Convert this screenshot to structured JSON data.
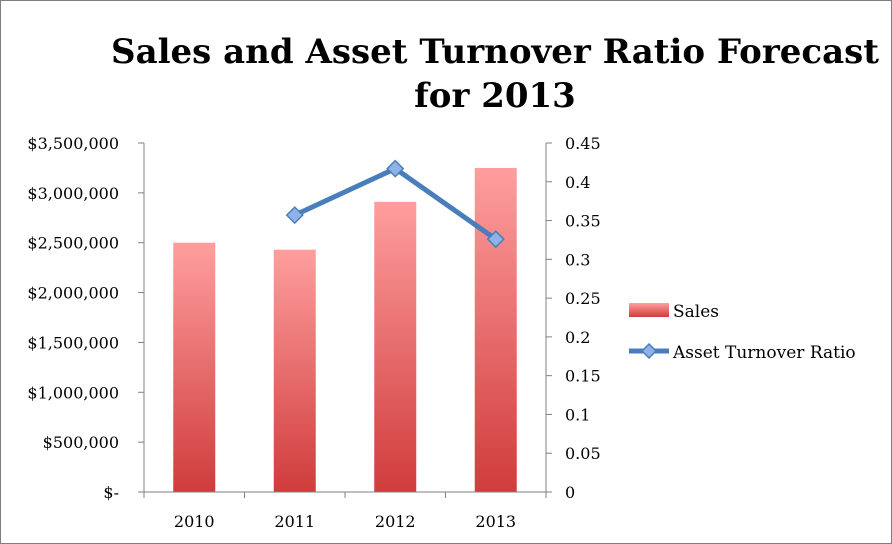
{
  "chart_data": {
    "type": "bar",
    "title": "Sales and Asset Turnover Ratio Forecast for 2013",
    "title_lines": [
      "Sales and Asset Turnover Ratio Forecast",
      "for 2013"
    ],
    "categories": [
      "2010",
      "2011",
      "2012",
      "2013"
    ],
    "series": [
      {
        "name": "Sales",
        "type": "bar",
        "axis": "left",
        "values": [
          2500000,
          2430000,
          2910000,
          3250000
        ],
        "color_top": "#ff9e9e",
        "color_bottom": "#d03c3c"
      },
      {
        "name": "Asset Turnover Ratio",
        "type": "line",
        "axis": "right",
        "values": [
          null,
          0.357,
          0.417,
          0.326
        ],
        "color": "#4a7ebb",
        "marker_color": "#8fb3e6"
      }
    ],
    "y_left": {
      "ylim": [
        0,
        3500000
      ],
      "ticks": [
        0,
        500000,
        1000000,
        1500000,
        2000000,
        2500000,
        3000000,
        3500000
      ],
      "tick_labels": [
        "$-",
        "$500,000",
        "$1,000,000",
        "$1,500,000",
        "$2,000,000",
        "$2,500,000",
        "$3,000,000",
        "$3,500,000"
      ]
    },
    "y_right": {
      "ylim": [
        0,
        0.45
      ],
      "ticks": [
        0,
        0.05,
        0.1,
        0.15,
        0.2,
        0.25,
        0.3,
        0.35,
        0.4,
        0.45
      ],
      "tick_labels": [
        "0",
        "0.05",
        "0.1",
        "0.15",
        "0.2",
        "0.25",
        "0.3",
        "0.35",
        "0.4",
        "0.45"
      ]
    },
    "grid": false,
    "legend_position": "right"
  }
}
